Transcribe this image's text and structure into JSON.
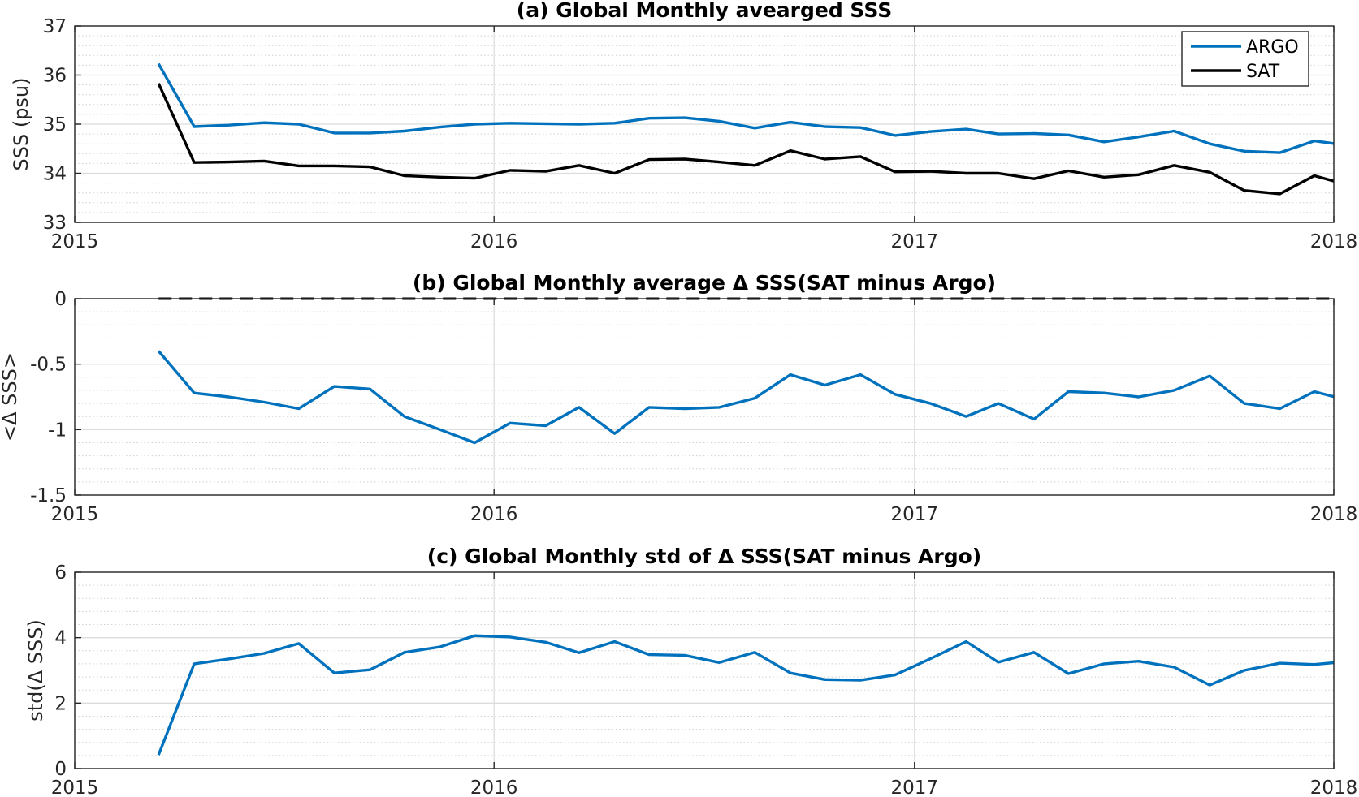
{
  "colors": {
    "argo": "#0072BD",
    "sat": "#000000",
    "delta": "#0072BD"
  },
  "chart_data": [
    {
      "id": "a",
      "type": "line",
      "title": "(a) Global Monthly avearged SSS",
      "xlabel": "",
      "ylabel": "SSS (psu)",
      "xlim": [
        "2015-01-01",
        "2018-01-01"
      ],
      "ylim": [
        33,
        37
      ],
      "x_ticks": [
        "2015",
        "2016",
        "2017",
        "2018"
      ],
      "y_ticks": [
        "33",
        "34",
        "35",
        "36",
        "37"
      ],
      "y_tick_values": [
        33,
        34,
        35,
        36,
        37
      ],
      "y_minor_step": 0.2,
      "legend": {
        "position": "top-right",
        "entries": [
          "ARGO",
          "SAT"
        ]
      },
      "grid": true,
      "dates": [
        "2015-03-15",
        "2015-04-15",
        "2015-05-15",
        "2015-06-15",
        "2015-07-15",
        "2015-08-15",
        "2015-09-15",
        "2015-10-15",
        "2015-11-15",
        "2015-12-15",
        "2016-01-15",
        "2016-02-15",
        "2016-03-15",
        "2016-04-15",
        "2016-05-15",
        "2016-06-15",
        "2016-07-15",
        "2016-08-15",
        "2016-09-15",
        "2016-10-15",
        "2016-11-15",
        "2016-12-15",
        "2017-01-15",
        "2017-02-15",
        "2017-03-15",
        "2017-04-15",
        "2017-05-15",
        "2017-06-15",
        "2017-07-15",
        "2017-08-15",
        "2017-09-15",
        "2017-10-15",
        "2017-11-15",
        "2017-12-15",
        "2018-01-15"
      ],
      "series": [
        {
          "name": "ARGO",
          "color_key": "argo",
          "values": [
            36.23,
            34.95,
            34.98,
            35.03,
            35.0,
            34.82,
            34.82,
            34.86,
            34.94,
            35.0,
            35.02,
            35.01,
            35.0,
            35.02,
            35.12,
            35.13,
            35.06,
            34.92,
            35.04,
            34.95,
            34.93,
            34.77,
            34.85,
            34.9,
            34.8,
            34.81,
            34.78,
            34.64,
            34.74,
            34.86,
            34.6,
            34.45,
            34.42,
            34.66,
            34.56
          ]
        },
        {
          "name": "SAT",
          "color_key": "sat",
          "values": [
            35.83,
            34.22,
            34.23,
            34.25,
            34.15,
            34.15,
            34.13,
            33.95,
            33.92,
            33.9,
            34.06,
            34.04,
            34.16,
            34.0,
            34.28,
            34.29,
            34.23,
            34.16,
            34.46,
            34.29,
            34.34,
            34.03,
            34.04,
            34.0,
            34.0,
            33.89,
            34.05,
            33.92,
            33.97,
            34.16,
            34.02,
            33.65,
            33.58,
            33.95,
            33.75
          ]
        }
      ]
    },
    {
      "id": "b",
      "type": "line",
      "title": "(b) Global Monthly average Δ SSS(SAT minus Argo)",
      "xlabel": "",
      "ylabel": "<Δ SSS>",
      "xlim": [
        "2015-01-01",
        "2018-01-01"
      ],
      "ylim": [
        -1.5,
        0
      ],
      "x_ticks": [
        "2015",
        "2016",
        "2017",
        "2018"
      ],
      "y_ticks": [
        "-1.5",
        "-1",
        "-0.5",
        "0"
      ],
      "y_tick_values": [
        -1.5,
        -1,
        -0.5,
        0
      ],
      "y_minor_step": 0.1,
      "grid": true,
      "reference_line": {
        "y": 0,
        "style": "dashed",
        "color": "#000000"
      },
      "dates": [
        "2015-03-15",
        "2015-04-15",
        "2015-05-15",
        "2015-06-15",
        "2015-07-15",
        "2015-08-15",
        "2015-09-15",
        "2015-10-15",
        "2015-11-15",
        "2015-12-15",
        "2016-01-15",
        "2016-02-15",
        "2016-03-15",
        "2016-04-15",
        "2016-05-15",
        "2016-06-15",
        "2016-07-15",
        "2016-08-15",
        "2016-09-15",
        "2016-10-15",
        "2016-11-15",
        "2016-12-15",
        "2017-01-15",
        "2017-02-15",
        "2017-03-15",
        "2017-04-15",
        "2017-05-15",
        "2017-06-15",
        "2017-07-15",
        "2017-08-15",
        "2017-09-15",
        "2017-10-15",
        "2017-11-15",
        "2017-12-15",
        "2018-01-15"
      ],
      "series": [
        {
          "name": "",
          "color_key": "delta",
          "values": [
            -0.4,
            -0.72,
            -0.75,
            -0.79,
            -0.84,
            -0.67,
            -0.69,
            -0.9,
            -1.0,
            -1.1,
            -0.95,
            -0.97,
            -0.83,
            -1.03,
            -0.83,
            -0.84,
            -0.83,
            -0.76,
            -0.58,
            -0.66,
            -0.58,
            -0.73,
            -0.8,
            -0.9,
            -0.8,
            -0.92,
            -0.71,
            -0.72,
            -0.75,
            -0.7,
            -0.59,
            -0.8,
            -0.84,
            -0.71,
            -0.78
          ]
        }
      ]
    },
    {
      "id": "c",
      "type": "line",
      "title": "(c) Global Monthly std of Δ SSS(SAT minus Argo)",
      "xlabel": "",
      "ylabel": "std(Δ SSS)",
      "xlim": [
        "2015-01-01",
        "2018-01-01"
      ],
      "ylim": [
        0,
        6
      ],
      "x_ticks": [
        "2015",
        "2016",
        "2017",
        "2018"
      ],
      "y_ticks": [
        "0",
        "2",
        "4",
        "6"
      ],
      "y_tick_values": [
        0,
        2,
        4,
        6
      ],
      "y_minor_step": 0.4,
      "grid": true,
      "dates": [
        "2015-03-15",
        "2015-04-15",
        "2015-05-15",
        "2015-06-15",
        "2015-07-15",
        "2015-08-15",
        "2015-09-15",
        "2015-10-15",
        "2015-11-15",
        "2015-12-15",
        "2016-01-15",
        "2016-02-15",
        "2016-03-15",
        "2016-04-15",
        "2016-05-15",
        "2016-06-15",
        "2016-07-15",
        "2016-08-15",
        "2016-09-15",
        "2016-10-15",
        "2016-11-15",
        "2016-12-15",
        "2017-01-15",
        "2017-02-15",
        "2017-03-15",
        "2017-04-15",
        "2017-05-15",
        "2017-06-15",
        "2017-07-15",
        "2017-08-15",
        "2017-09-15",
        "2017-10-15",
        "2017-11-15",
        "2017-12-15",
        "2018-01-15"
      ],
      "series": [
        {
          "name": "",
          "color_key": "delta",
          "values": [
            0.42,
            3.2,
            3.35,
            3.52,
            3.82,
            2.92,
            3.02,
            3.55,
            3.72,
            4.06,
            4.02,
            3.86,
            3.54,
            3.88,
            3.48,
            3.46,
            3.24,
            3.55,
            2.92,
            2.72,
            2.7,
            2.86,
            3.36,
            3.88,
            3.25,
            3.55,
            2.9,
            3.2,
            3.28,
            3.1,
            2.55,
            3.0,
            3.22,
            3.18,
            3.28
          ]
        }
      ]
    }
  ]
}
